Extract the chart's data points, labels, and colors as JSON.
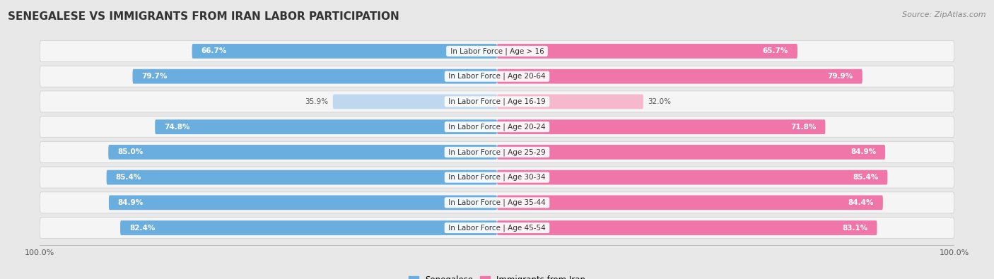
{
  "title": "SENEGALESE VS IMMIGRANTS FROM IRAN LABOR PARTICIPATION",
  "source": "Source: ZipAtlas.com",
  "categories": [
    "In Labor Force | Age > 16",
    "In Labor Force | Age 20-64",
    "In Labor Force | Age 16-19",
    "In Labor Force | Age 20-24",
    "In Labor Force | Age 25-29",
    "In Labor Force | Age 30-34",
    "In Labor Force | Age 35-44",
    "In Labor Force | Age 45-54"
  ],
  "senegalese": [
    66.7,
    79.7,
    35.9,
    74.8,
    85.0,
    85.4,
    84.9,
    82.4
  ],
  "iran": [
    65.7,
    79.9,
    32.0,
    71.8,
    84.9,
    85.4,
    84.4,
    83.1
  ],
  "senegalese_color": "#6aaee0",
  "senegalese_light_color": "#c0d8ef",
  "iran_color": "#f075a8",
  "iran_light_color": "#f5b8cc",
  "background_color": "#e8e8e8",
  "row_bg_color": "#f5f5f5",
  "bar_height": 0.58,
  "max_value": 100.0,
  "legend_senegalese": "Senegalese",
  "legend_iran": "Immigrants from Iran",
  "title_fontsize": 11,
  "source_fontsize": 8,
  "label_fontsize": 7.5,
  "value_fontsize": 7.5,
  "tick_fontsize": 8
}
